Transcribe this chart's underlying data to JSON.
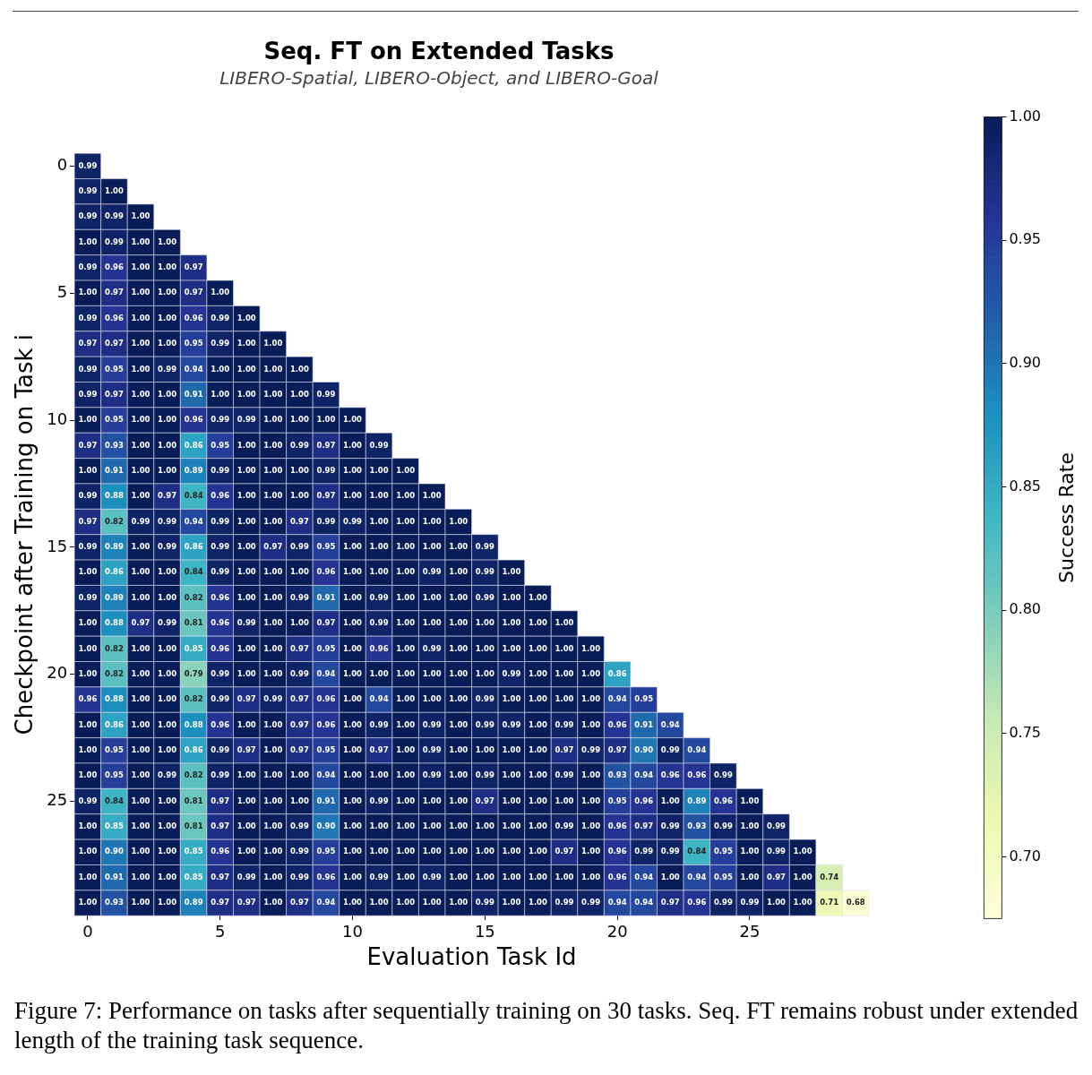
{
  "chart_data": {
    "type": "heatmap",
    "title": "Seq. FT on Extended Tasks",
    "subtitle": "LIBERO-Spatial, LIBERO-Object, and LIBERO-Goal",
    "xlabel": "Evaluation Task Id",
    "ylabel": "Checkpoint after Training on Task i",
    "clabel": "Success Rate",
    "categories": [
      "0",
      null,
      null,
      null,
      null,
      "5",
      null,
      null,
      null,
      null,
      "10",
      null,
      null,
      null,
      null,
      "15",
      null,
      null,
      null,
      null,
      "20",
      null,
      null,
      null,
      null,
      "25",
      null,
      null,
      null,
      null
    ],
    "y_categories": [
      "0",
      null,
      null,
      null,
      null,
      "5",
      null,
      null,
      null,
      null,
      "10",
      null,
      null,
      null,
      null,
      "15",
      null,
      null,
      null,
      null,
      "20",
      null,
      null,
      null,
      null,
      "25",
      null,
      null,
      null,
      null
    ],
    "cells": [
      [
        0.99,
        null,
        null,
        null,
        null,
        null,
        null,
        null,
        null,
        null,
        null,
        null,
        null,
        null,
        null,
        null,
        null,
        null,
        null,
        null,
        null,
        null,
        null,
        null,
        null,
        null,
        null,
        null,
        null,
        null
      ],
      [
        0.99,
        1.0,
        null,
        null,
        null,
        null,
        null,
        null,
        null,
        null,
        null,
        null,
        null,
        null,
        null,
        null,
        null,
        null,
        null,
        null,
        null,
        null,
        null,
        null,
        null,
        null,
        null,
        null,
        null,
        null
      ],
      [
        0.99,
        0.99,
        1.0,
        null,
        null,
        null,
        null,
        null,
        null,
        null,
        null,
        null,
        null,
        null,
        null,
        null,
        null,
        null,
        null,
        null,
        null,
        null,
        null,
        null,
        null,
        null,
        null,
        null,
        null,
        null
      ],
      [
        1.0,
        0.99,
        1.0,
        1.0,
        null,
        null,
        null,
        null,
        null,
        null,
        null,
        null,
        null,
        null,
        null,
        null,
        null,
        null,
        null,
        null,
        null,
        null,
        null,
        null,
        null,
        null,
        null,
        null,
        null,
        null
      ],
      [
        0.99,
        0.96,
        1.0,
        1.0,
        0.97,
        null,
        null,
        null,
        null,
        null,
        null,
        null,
        null,
        null,
        null,
        null,
        null,
        null,
        null,
        null,
        null,
        null,
        null,
        null,
        null,
        null,
        null,
        null,
        null,
        null
      ],
      [
        1.0,
        0.97,
        1.0,
        1.0,
        0.97,
        1.0,
        null,
        null,
        null,
        null,
        null,
        null,
        null,
        null,
        null,
        null,
        null,
        null,
        null,
        null,
        null,
        null,
        null,
        null,
        null,
        null,
        null,
        null,
        null,
        null
      ],
      [
        0.99,
        0.96,
        1.0,
        1.0,
        0.96,
        0.99,
        1.0,
        null,
        null,
        null,
        null,
        null,
        null,
        null,
        null,
        null,
        null,
        null,
        null,
        null,
        null,
        null,
        null,
        null,
        null,
        null,
        null,
        null,
        null,
        null
      ],
      [
        0.97,
        0.97,
        1.0,
        1.0,
        0.95,
        0.99,
        1.0,
        1.0,
        null,
        null,
        null,
        null,
        null,
        null,
        null,
        null,
        null,
        null,
        null,
        null,
        null,
        null,
        null,
        null,
        null,
        null,
        null,
        null,
        null,
        null
      ],
      [
        0.99,
        0.95,
        1.0,
        0.99,
        0.94,
        1.0,
        1.0,
        1.0,
        1.0,
        null,
        null,
        null,
        null,
        null,
        null,
        null,
        null,
        null,
        null,
        null,
        null,
        null,
        null,
        null,
        null,
        null,
        null,
        null,
        null,
        null
      ],
      [
        0.99,
        0.97,
        1.0,
        1.0,
        0.91,
        1.0,
        1.0,
        1.0,
        1.0,
        0.99,
        null,
        null,
        null,
        null,
        null,
        null,
        null,
        null,
        null,
        null,
        null,
        null,
        null,
        null,
        null,
        null,
        null,
        null,
        null,
        null
      ],
      [
        1.0,
        0.95,
        1.0,
        1.0,
        0.96,
        0.99,
        0.99,
        1.0,
        1.0,
        1.0,
        1.0,
        null,
        null,
        null,
        null,
        null,
        null,
        null,
        null,
        null,
        null,
        null,
        null,
        null,
        null,
        null,
        null,
        null,
        null,
        null
      ],
      [
        0.97,
        0.93,
        1.0,
        1.0,
        0.86,
        0.95,
        1.0,
        1.0,
        0.99,
        0.97,
        1.0,
        0.99,
        null,
        null,
        null,
        null,
        null,
        null,
        null,
        null,
        null,
        null,
        null,
        null,
        null,
        null,
        null,
        null,
        null,
        null
      ],
      [
        1.0,
        0.91,
        1.0,
        1.0,
        0.89,
        0.99,
        1.0,
        1.0,
        1.0,
        0.99,
        1.0,
        1.0,
        1.0,
        null,
        null,
        null,
        null,
        null,
        null,
        null,
        null,
        null,
        null,
        null,
        null,
        null,
        null,
        null,
        null,
        null
      ],
      [
        0.99,
        0.88,
        1.0,
        0.97,
        0.84,
        0.96,
        1.0,
        1.0,
        1.0,
        0.97,
        1.0,
        1.0,
        1.0,
        1.0,
        null,
        null,
        null,
        null,
        null,
        null,
        null,
        null,
        null,
        null,
        null,
        null,
        null,
        null,
        null,
        null
      ],
      [
        0.97,
        0.82,
        0.99,
        0.99,
        0.94,
        0.99,
        1.0,
        1.0,
        0.97,
        0.99,
        0.99,
        1.0,
        1.0,
        1.0,
        1.0,
        null,
        null,
        null,
        null,
        null,
        null,
        null,
        null,
        null,
        null,
        null,
        null,
        null,
        null,
        null
      ],
      [
        0.99,
        0.89,
        1.0,
        0.99,
        0.86,
        0.99,
        1.0,
        0.97,
        0.99,
        0.95,
        1.0,
        1.0,
        1.0,
        1.0,
        1.0,
        0.99,
        null,
        null,
        null,
        null,
        null,
        null,
        null,
        null,
        null,
        null,
        null,
        null,
        null,
        null
      ],
      [
        1.0,
        0.86,
        1.0,
        1.0,
        0.84,
        0.99,
        1.0,
        1.0,
        1.0,
        0.96,
        1.0,
        1.0,
        1.0,
        0.99,
        1.0,
        0.99,
        1.0,
        null,
        null,
        null,
        null,
        null,
        null,
        null,
        null,
        null,
        null,
        null,
        null,
        null
      ],
      [
        0.99,
        0.89,
        1.0,
        1.0,
        0.82,
        0.96,
        1.0,
        1.0,
        0.99,
        0.91,
        1.0,
        0.99,
        1.0,
        1.0,
        1.0,
        0.99,
        1.0,
        1.0,
        null,
        null,
        null,
        null,
        null,
        null,
        null,
        null,
        null,
        null,
        null,
        null
      ],
      [
        1.0,
        0.88,
        0.97,
        0.99,
        0.81,
        0.96,
        0.99,
        1.0,
        1.0,
        0.97,
        1.0,
        0.99,
        1.0,
        1.0,
        1.0,
        1.0,
        1.0,
        1.0,
        1.0,
        null,
        null,
        null,
        null,
        null,
        null,
        null,
        null,
        null,
        null,
        null
      ],
      [
        1.0,
        0.82,
        1.0,
        1.0,
        0.85,
        0.96,
        1.0,
        1.0,
        0.97,
        0.95,
        1.0,
        0.96,
        1.0,
        0.99,
        1.0,
        1.0,
        1.0,
        1.0,
        1.0,
        1.0,
        null,
        null,
        null,
        null,
        null,
        null,
        null,
        null,
        null,
        null
      ],
      [
        1.0,
        0.82,
        1.0,
        1.0,
        0.79,
        0.99,
        1.0,
        1.0,
        0.99,
        0.94,
        1.0,
        1.0,
        1.0,
        1.0,
        1.0,
        1.0,
        0.99,
        1.0,
        1.0,
        1.0,
        0.86,
        null,
        null,
        null,
        null,
        null,
        null,
        null,
        null,
        null
      ],
      [
        0.96,
        0.88,
        1.0,
        1.0,
        0.82,
        0.99,
        0.97,
        0.99,
        0.97,
        0.96,
        1.0,
        0.94,
        1.0,
        1.0,
        1.0,
        0.99,
        1.0,
        1.0,
        1.0,
        1.0,
        0.94,
        0.95,
        null,
        null,
        null,
        null,
        null,
        null,
        null,
        null
      ],
      [
        1.0,
        0.86,
        1.0,
        1.0,
        0.88,
        0.96,
        1.0,
        1.0,
        0.97,
        0.96,
        1.0,
        0.99,
        1.0,
        0.99,
        1.0,
        0.99,
        0.99,
        1.0,
        0.99,
        1.0,
        0.96,
        0.91,
        0.94,
        null,
        null,
        null,
        null,
        null,
        null,
        null
      ],
      [
        1.0,
        0.95,
        1.0,
        1.0,
        0.86,
        0.99,
        0.97,
        1.0,
        0.97,
        0.95,
        1.0,
        0.97,
        1.0,
        0.99,
        1.0,
        1.0,
        1.0,
        1.0,
        0.97,
        0.99,
        0.97,
        0.9,
        0.99,
        0.94,
        null,
        null,
        null,
        null,
        null,
        null
      ],
      [
        1.0,
        0.95,
        1.0,
        0.99,
        0.82,
        0.99,
        1.0,
        1.0,
        1.0,
        0.94,
        1.0,
        1.0,
        1.0,
        0.99,
        1.0,
        0.99,
        1.0,
        1.0,
        0.99,
        1.0,
        0.93,
        0.94,
        0.96,
        0.96,
        0.99,
        null,
        null,
        null,
        null,
        null
      ],
      [
        0.99,
        0.84,
        1.0,
        1.0,
        0.81,
        0.97,
        1.0,
        1.0,
        1.0,
        0.91,
        1.0,
        0.99,
        1.0,
        1.0,
        1.0,
        0.97,
        1.0,
        1.0,
        1.0,
        1.0,
        0.95,
        0.96,
        1.0,
        0.89,
        0.96,
        1.0,
        null,
        null,
        null,
        null
      ],
      [
        1.0,
        0.85,
        1.0,
        1.0,
        0.81,
        0.97,
        1.0,
        1.0,
        0.99,
        0.9,
        1.0,
        1.0,
        1.0,
        1.0,
        1.0,
        1.0,
        1.0,
        1.0,
        0.99,
        1.0,
        0.96,
        0.97,
        0.99,
        0.93,
        0.99,
        1.0,
        0.99,
        null,
        null,
        null
      ],
      [
        1.0,
        0.9,
        1.0,
        1.0,
        0.85,
        0.96,
        1.0,
        1.0,
        0.99,
        0.95,
        1.0,
        1.0,
        1.0,
        1.0,
        1.0,
        1.0,
        1.0,
        1.0,
        0.97,
        1.0,
        0.96,
        0.99,
        0.99,
        0.84,
        0.95,
        1.0,
        0.99,
        1.0,
        null,
        null
      ],
      [
        1.0,
        0.91,
        1.0,
        1.0,
        0.85,
        0.97,
        0.99,
        1.0,
        0.99,
        0.96,
        1.0,
        0.99,
        1.0,
        0.99,
        1.0,
        1.0,
        1.0,
        1.0,
        1.0,
        1.0,
        0.96,
        0.94,
        1.0,
        0.94,
        0.95,
        1.0,
        0.97,
        1.0,
        0.74,
        null
      ],
      [
        1.0,
        0.93,
        1.0,
        1.0,
        0.89,
        0.97,
        0.97,
        1.0,
        0.97,
        0.94,
        1.0,
        1.0,
        1.0,
        1.0,
        1.0,
        0.99,
        1.0,
        1.0,
        0.99,
        0.99,
        0.94,
        0.94,
        0.97,
        0.96,
        0.99,
        0.99,
        1.0,
        1.0,
        0.71,
        0.68
      ]
    ],
    "clim": [
      0.675,
      1.0
    ],
    "cticks": [
      {
        "value": 0.7,
        "label": "0.70"
      },
      {
        "value": 0.75,
        "label": "0.75"
      },
      {
        "value": 0.8,
        "label": "0.80"
      },
      {
        "value": 0.85,
        "label": "0.85"
      },
      {
        "value": 0.9,
        "label": "0.90"
      },
      {
        "value": 0.95,
        "label": "0.95"
      },
      {
        "value": 1.0,
        "label": "1.00"
      }
    ],
    "cell_labels": [
      [
        "0.99",
        null,
        null,
        null,
        null,
        null,
        null,
        null,
        null,
        null,
        null,
        null,
        null,
        null,
        null,
        null,
        null,
        null,
        null,
        null,
        null,
        null,
        null,
        null,
        null,
        null,
        null,
        null,
        null,
        null
      ],
      [
        "0.99",
        "1.00",
        null,
        null,
        null,
        null,
        null,
        null,
        null,
        null,
        null,
        null,
        null,
        null,
        null,
        null,
        null,
        null,
        null,
        null,
        null,
        null,
        null,
        null,
        null,
        null,
        null,
        null,
        null,
        null
      ],
      [
        "0.99",
        "0.99",
        "1.00",
        null,
        null,
        null,
        null,
        null,
        null,
        null,
        null,
        null,
        null,
        null,
        null,
        null,
        null,
        null,
        null,
        null,
        null,
        null,
        null,
        null,
        null,
        null,
        null,
        null,
        null,
        null
      ],
      [
        "1.00",
        "0.99",
        "1.00",
        "1.00",
        null,
        null,
        null,
        null,
        null,
        null,
        null,
        null,
        null,
        null,
        null,
        null,
        null,
        null,
        null,
        null,
        null,
        null,
        null,
        null,
        null,
        null,
        null,
        null,
        null,
        null
      ],
      [
        "0.99",
        "0.96",
        "1.00",
        "1.00",
        "0.97",
        null,
        null,
        null,
        null,
        null,
        null,
        null,
        null,
        null,
        null,
        null,
        null,
        null,
        null,
        null,
        null,
        null,
        null,
        null,
        null,
        null,
        null,
        null,
        null,
        null
      ],
      [
        "1.00",
        "0.97",
        "1.00",
        "1.00",
        "0.97",
        "1.00",
        null,
        null,
        null,
        null,
        null,
        null,
        null,
        null,
        null,
        null,
        null,
        null,
        null,
        null,
        null,
        null,
        null,
        null,
        null,
        null,
        null,
        null,
        null,
        null
      ],
      [
        "0.99",
        "0.96",
        "1.00",
        "1.00",
        "0.96",
        "0.99",
        "1.00",
        null,
        null,
        null,
        null,
        null,
        null,
        null,
        null,
        null,
        null,
        null,
        null,
        null,
        null,
        null,
        null,
        null,
        null,
        null,
        null,
        null,
        null,
        null
      ],
      [
        "0.97",
        "0.97",
        "1.00",
        "1.00",
        "0.95",
        "0.99",
        "1.00",
        "1.00",
        null,
        null,
        null,
        null,
        null,
        null,
        null,
        null,
        null,
        null,
        null,
        null,
        null,
        null,
        null,
        null,
        null,
        null,
        null,
        null,
        null,
        null
      ],
      [
        "0.99",
        "0.95",
        "1.00",
        "0.99",
        "0.94",
        "1.00",
        "1.00",
        "1.00",
        "1.00",
        null,
        null,
        null,
        null,
        null,
        null,
        null,
        null,
        null,
        null,
        null,
        null,
        null,
        null,
        null,
        null,
        null,
        null,
        null,
        null,
        null
      ],
      [
        "0.99",
        "0.97",
        "1.00",
        "1.00",
        "0.91",
        "1.00",
        "1.00",
        "1.00",
        "1.00",
        "0.99",
        null,
        null,
        null,
        null,
        null,
        null,
        null,
        null,
        null,
        null,
        null,
        null,
        null,
        null,
        null,
        null,
        null,
        null,
        null,
        null
      ],
      [
        "1.00",
        "0.95",
        "1.00",
        "1.00",
        "0.96",
        "0.99",
        "0.99",
        "1.00",
        "1.00",
        "1.00",
        "1.00",
        null,
        null,
        null,
        null,
        null,
        null,
        null,
        null,
        null,
        null,
        null,
        null,
        null,
        null,
        null,
        null,
        null,
        null,
        null
      ],
      [
        "0.97",
        "0.93",
        "1.00",
        "1.00",
        "0.86",
        "0.95",
        "1.00",
        "1.00",
        "0.99",
        "0.97",
        "1.00",
        "0.99",
        null,
        null,
        null,
        null,
        null,
        null,
        null,
        null,
        null,
        null,
        null,
        null,
        null,
        null,
        null,
        null,
        null,
        null
      ],
      [
        "1.00",
        "0.91",
        "1.00",
        "1.00",
        "0.89",
        "0.99",
        "1.00",
        "1.00",
        "1.00",
        "0.99",
        "1.00",
        "1.00",
        "1.00",
        null,
        null,
        null,
        null,
        null,
        null,
        null,
        null,
        null,
        null,
        null,
        null,
        null,
        null,
        null,
        null,
        null
      ],
      [
        "0.99",
        "0.88",
        "1.00",
        "0.97",
        "0.84",
        "0.96",
        "1.00",
        "1.00",
        "1.00",
        "0.97",
        "1.00",
        "1.00",
        "1.00",
        "1.00",
        null,
        null,
        null,
        null,
        null,
        null,
        null,
        null,
        null,
        null,
        null,
        null,
        null,
        null,
        null,
        null
      ],
      [
        "0.97",
        "0.82",
        "0.99",
        "0.99",
        "0.94",
        "0.99",
        "1.00",
        "1.00",
        "0.97",
        "0.99",
        "0.99",
        "1.00",
        "1.00",
        "1.00",
        "1.00",
        null,
        null,
        null,
        null,
        null,
        null,
        null,
        null,
        null,
        null,
        null,
        null,
        null,
        null,
        null
      ],
      [
        "0.99",
        "0.89",
        "1.00",
        "0.99",
        "0.86",
        "0.99",
        "1.00",
        "0.97",
        "0.99",
        "0.95",
        "1.00",
        "1.00",
        "1.00",
        "1.00",
        "1.00",
        "0.99",
        null,
        null,
        null,
        null,
        null,
        null,
        null,
        null,
        null,
        null,
        null,
        null,
        null,
        null
      ],
      [
        "1.00",
        "0.86",
        "1.00",
        "1.00",
        "0.84",
        "0.99",
        "1.00",
        "1.00",
        "1.00",
        "0.96",
        "1.00",
        "1.00",
        "1.00",
        "0.99",
        "1.00",
        "0.99",
        "1.00",
        null,
        null,
        null,
        null,
        null,
        null,
        null,
        null,
        null,
        null,
        null,
        null,
        null
      ],
      [
        "0.99",
        "0.89",
        "1.00",
        "1.00",
        "0.82",
        "0.96",
        "1.00",
        "1.00",
        "0.99",
        "0.91",
        "1.00",
        "0.99",
        "1.00",
        "1.00",
        "1.00",
        "0.99",
        "1.00",
        "1.00",
        null,
        null,
        null,
        null,
        null,
        null,
        null,
        null,
        null,
        null,
        null,
        null
      ],
      [
        "1.00",
        "0.88",
        "0.97",
        "0.99",
        "0.81",
        "0.96",
        "0.99",
        "1.00",
        "1.00",
        "0.97",
        "1.00",
        "0.99",
        "1.00",
        "1.00",
        "1.00",
        "1.00",
        "1.00",
        "1.00",
        "1.00",
        null,
        null,
        null,
        null,
        null,
        null,
        null,
        null,
        null,
        null,
        null
      ],
      [
        "1.00",
        "0.82",
        "1.00",
        "1.00",
        "0.85",
        "0.96",
        "1.00",
        "1.00",
        "0.97",
        "0.95",
        "1.00",
        "0.96",
        "1.00",
        "0.99",
        "1.00",
        "1.00",
        "1.00",
        "1.00",
        "1.00",
        "1.00",
        null,
        null,
        null,
        null,
        null,
        null,
        null,
        null,
        null,
        null
      ],
      [
        "1.00",
        "0.82",
        "1.00",
        "1.00",
        "0.79",
        "0.99",
        "1.00",
        "1.00",
        "0.99",
        "0.94",
        "1.00",
        "1.00",
        "1.00",
        "1.00",
        "1.00",
        "1.00",
        "0.99",
        "1.00",
        "1.00",
        "1.00",
        "0.86",
        null,
        null,
        null,
        null,
        null,
        null,
        null,
        null,
        null
      ],
      [
        "0.96",
        "0.88",
        "1.00",
        "1.00",
        "0.82",
        "0.99",
        "0.97",
        "0.99",
        "0.97",
        "0.96",
        "1.00",
        "0.94",
        "1.00",
        "1.00",
        "1.00",
        "0.99",
        "1.00",
        "1.00",
        "1.00",
        "1.00",
        "0.94",
        "0.95",
        null,
        null,
        null,
        null,
        null,
        null,
        null,
        null
      ],
      [
        "1.00",
        "0.86",
        "1.00",
        "1.00",
        "0.88",
        "0.96",
        "1.00",
        "1.00",
        "0.97",
        "0.96",
        "1.00",
        "0.99",
        "1.00",
        "0.99",
        "1.00",
        "0.99",
        "0.99",
        "1.00",
        "0.99",
        "1.00",
        "0.96",
        "0.91",
        "0.94",
        null,
        null,
        null,
        null,
        null,
        null,
        null
      ],
      [
        "1.00",
        "0.95",
        "1.00",
        "1.00",
        "0.86",
        "0.99",
        "0.97",
        "1.00",
        "0.97",
        "0.95",
        "1.00",
        "0.97",
        "1.00",
        "0.99",
        "1.00",
        "1.00",
        "1.00",
        "1.00",
        "0.97",
        "0.99",
        "0.97",
        "0.90",
        "0.99",
        "0.94",
        null,
        null,
        null,
        null,
        null,
        null
      ],
      [
        "1.00",
        "0.95",
        "1.00",
        "0.99",
        "0.82",
        "0.99",
        "1.00",
        "1.00",
        "1.00",
        "0.94",
        "1.00",
        "1.00",
        "1.00",
        "0.99",
        "1.00",
        "0.99",
        "1.00",
        "1.00",
        "0.99",
        "1.00",
        "0.93",
        "0.94",
        "0.96",
        "0.96",
        "0.99",
        null,
        null,
        null,
        null,
        null
      ],
      [
        "0.99",
        "0.84",
        "1.00",
        "1.00",
        "0.81",
        "0.97",
        "1.00",
        "1.00",
        "1.00",
        "0.91",
        "1.00",
        "0.99",
        "1.00",
        "1.00",
        "1.00",
        "0.97",
        "1.00",
        "1.00",
        "1.00",
        "1.00",
        "0.95",
        "0.96",
        "1.00",
        "0.89",
        "0.96",
        "1.00",
        null,
        null,
        null,
        null
      ],
      [
        "1.00",
        "0.85",
        "1.00",
        "1.00",
        "0.81",
        "0.97",
        "1.00",
        "1.00",
        "0.99",
        "0.90",
        "1.00",
        "1.00",
        "1.00",
        "1.00",
        "1.00",
        "1.00",
        "1.00",
        "1.00",
        "0.99",
        "1.00",
        "0.96",
        "0.97",
        "0.99",
        "0.93",
        "0.99",
        "1.00",
        "0.99",
        null,
        null,
        null
      ],
      [
        "1.00",
        "0.90",
        "1.00",
        "1.00",
        "0.85",
        "0.96",
        "1.00",
        "1.00",
        "0.99",
        "0.95",
        "1.00",
        "1.00",
        "1.00",
        "1.00",
        "1.00",
        "1.00",
        "1.00",
        "1.00",
        "0.97",
        "1.00",
        "0.96",
        "0.99",
        "0.99",
        "0.84",
        "0.95",
        "1.00",
        "0.99",
        "1.00",
        null,
        null
      ],
      [
        "1.00",
        "0.91",
        "1.00",
        "1.00",
        "0.85",
        "0.97",
        "0.99",
        "1.00",
        "0.99",
        "0.96",
        "1.00",
        "0.99",
        "1.00",
        "0.99",
        "1.00",
        "1.00",
        "1.00",
        "1.00",
        "1.00",
        "1.00",
        "0.96",
        "0.94",
        "1.00",
        "0.94",
        "0.95",
        "1.00",
        "0.97",
        "1.00",
        "0.74",
        null
      ],
      [
        "1.00",
        "0.93",
        "1.00",
        "1.00",
        "0.89",
        "0.97",
        "0.97",
        "1.00",
        "0.97",
        "0.94",
        "1.00",
        "1.00",
        "1.00",
        "1.00",
        "1.00",
        "0.99",
        "1.00",
        "1.00",
        "0.99",
        "0.99",
        "0.94",
        "0.94",
        "0.97",
        "0.96",
        "0.99",
        "0.99",
        "1.00",
        "1.00",
        "0.71",
        "0.68"
      ]
    ],
    "annotations": [
      "Figure 7: Performance on tasks after sequentially training on 30 tasks. Seq. FT remains robust under extended length of the training task sequence."
    ]
  }
}
